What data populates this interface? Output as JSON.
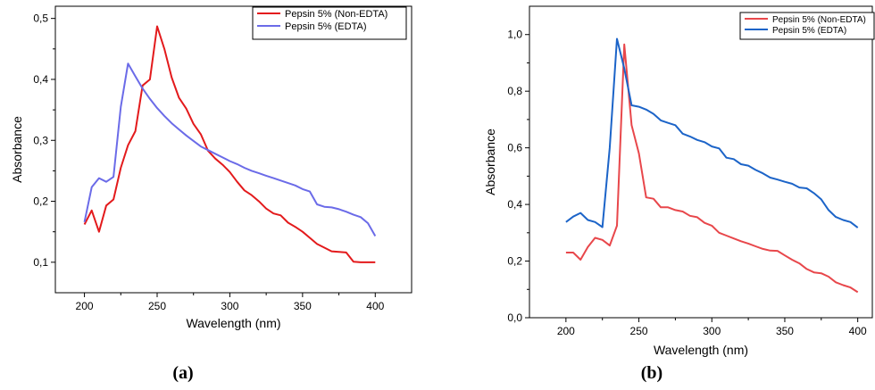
{
  "chart_data": [
    {
      "type": "line",
      "panel_label": "(a)",
      "xlabel": "Wavelength (nm)",
      "ylabel": "Absorbance",
      "xlim": [
        180,
        425
      ],
      "ylim": [
        0.05,
        0.52
      ],
      "xticks": [
        200,
        250,
        300,
        350,
        400
      ],
      "yticks": [
        0.1,
        0.2,
        0.3,
        0.4,
        0.5
      ],
      "xtick_labels": [
        "200",
        "250",
        "300",
        "350",
        "400"
      ],
      "ytick_labels": [
        "0,1",
        "0,2",
        "0,3",
        "0,4",
        "0,5"
      ],
      "grid": false,
      "legend_position": "top-right",
      "series": [
        {
          "name": "Pepsin 5% (Non-EDTA)",
          "color": "#e31a1c",
          "x": [
            200,
            205,
            210,
            215,
            220,
            225,
            230,
            235,
            240,
            245,
            250,
            255,
            260,
            265,
            270,
            275,
            280,
            285,
            290,
            295,
            300,
            305,
            310,
            315,
            320,
            325,
            330,
            335,
            340,
            345,
            350,
            355,
            360,
            365,
            370,
            375,
            380,
            385,
            390,
            395,
            400
          ],
          "y": [
            0.162,
            0.185,
            0.15,
            0.193,
            0.203,
            0.255,
            0.292,
            0.315,
            0.39,
            0.4,
            0.487,
            0.45,
            0.403,
            0.37,
            0.352,
            0.327,
            0.31,
            0.283,
            0.27,
            0.26,
            0.248,
            0.232,
            0.218,
            0.21,
            0.2,
            0.188,
            0.18,
            0.177,
            0.165,
            0.158,
            0.15,
            0.14,
            0.13,
            0.124,
            0.118,
            0.117,
            0.116,
            0.101,
            0.1,
            0.1,
            0.1
          ]
        },
        {
          "name": "Pepsin 5% (EDTA)",
          "color": "#6b6be8",
          "x": [
            200,
            205,
            210,
            215,
            220,
            225,
            230,
            235,
            240,
            245,
            250,
            255,
            260,
            265,
            270,
            275,
            280,
            285,
            290,
            295,
            300,
            305,
            310,
            315,
            320,
            325,
            330,
            335,
            340,
            345,
            350,
            355,
            360,
            365,
            370,
            375,
            380,
            385,
            390,
            395,
            400
          ],
          "y": [
            0.166,
            0.223,
            0.238,
            0.232,
            0.24,
            0.355,
            0.426,
            0.405,
            0.385,
            0.368,
            0.353,
            0.34,
            0.328,
            0.318,
            0.308,
            0.299,
            0.29,
            0.284,
            0.278,
            0.272,
            0.266,
            0.261,
            0.255,
            0.25,
            0.246,
            0.242,
            0.238,
            0.234,
            0.23,
            0.226,
            0.22,
            0.216,
            0.195,
            0.191,
            0.19,
            0.187,
            0.183,
            0.178,
            0.174,
            0.164,
            0.143
          ]
        }
      ]
    },
    {
      "type": "line",
      "panel_label": "(b)",
      "xlabel": "Wavelength (nm)",
      "ylabel": "Absorbance",
      "xlim": [
        175,
        410
      ],
      "ylim": [
        0.0,
        1.1
      ],
      "xticks": [
        200,
        250,
        300,
        350,
        400
      ],
      "yticks": [
        0.0,
        0.2,
        0.4,
        0.6,
        0.8,
        1.0
      ],
      "xtick_labels": [
        "200",
        "250",
        "300",
        "350",
        "400"
      ],
      "ytick_labels": [
        "0,0",
        "0,2",
        "0,4",
        "0,6",
        "0,8",
        "1,0"
      ],
      "grid": false,
      "legend_position": "top-right",
      "series": [
        {
          "name": "Pepsin 5% (Non-EDTA)",
          "color": "#e8474b",
          "x": [
            200,
            205,
            210,
            215,
            220,
            225,
            230,
            235,
            240,
            245,
            250,
            255,
            260,
            265,
            270,
            275,
            280,
            285,
            290,
            295,
            300,
            305,
            310,
            315,
            320,
            325,
            330,
            335,
            340,
            345,
            350,
            355,
            360,
            365,
            370,
            375,
            380,
            385,
            390,
            395,
            400
          ],
          "y": [
            0.23,
            0.23,
            0.205,
            0.25,
            0.282,
            0.275,
            0.255,
            0.325,
            0.965,
            0.68,
            0.58,
            0.425,
            0.42,
            0.39,
            0.39,
            0.38,
            0.375,
            0.36,
            0.355,
            0.335,
            0.325,
            0.3,
            0.29,
            0.28,
            0.27,
            0.262,
            0.252,
            0.243,
            0.237,
            0.236,
            0.22,
            0.205,
            0.192,
            0.172,
            0.16,
            0.157,
            0.145,
            0.125,
            0.115,
            0.107,
            0.09
          ]
        },
        {
          "name": "Pepsin 5% (EDTA)",
          "color": "#1c64c8",
          "x": [
            200,
            205,
            210,
            215,
            220,
            225,
            230,
            235,
            240,
            245,
            250,
            255,
            260,
            265,
            270,
            275,
            280,
            285,
            290,
            295,
            300,
            305,
            310,
            315,
            320,
            325,
            330,
            335,
            340,
            345,
            350,
            355,
            360,
            365,
            370,
            375,
            380,
            385,
            390,
            395,
            400
          ],
          "y": [
            0.338,
            0.357,
            0.37,
            0.345,
            0.338,
            0.32,
            0.6,
            0.985,
            0.88,
            0.75,
            0.745,
            0.735,
            0.72,
            0.697,
            0.688,
            0.68,
            0.65,
            0.64,
            0.628,
            0.62,
            0.605,
            0.598,
            0.565,
            0.56,
            0.542,
            0.537,
            0.522,
            0.51,
            0.495,
            0.488,
            0.48,
            0.473,
            0.46,
            0.457,
            0.44,
            0.418,
            0.38,
            0.356,
            0.345,
            0.338,
            0.318
          ]
        }
      ]
    }
  ]
}
